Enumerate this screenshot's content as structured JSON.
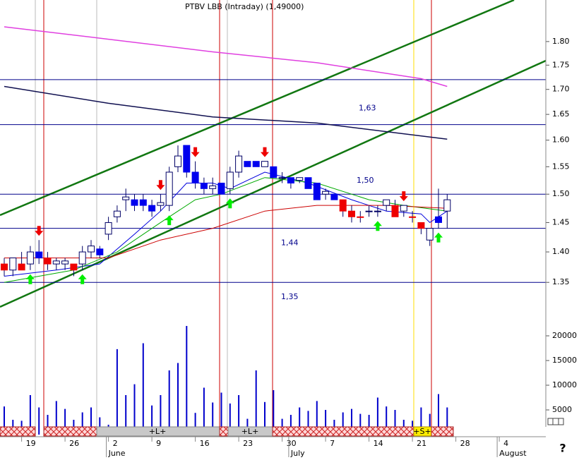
{
  "chart_data": {
    "type": "candlestick",
    "title": "PTBV LBB (Intraday) (1,49000)",
    "log": true,
    "categories": [
      null,
      null,
      "19",
      null,
      null,
      null,
      null,
      "26",
      null,
      null,
      null,
      null,
      "2",
      null,
      null,
      null,
      null,
      "9",
      null,
      null,
      null,
      null,
      "16",
      null,
      null,
      null,
      null,
      "23",
      null,
      null,
      null,
      null,
      "30",
      null,
      null,
      null,
      null,
      "7",
      null,
      null,
      null,
      null,
      "14",
      null,
      null,
      null,
      null,
      "21",
      null,
      null,
      null,
      null,
      "28",
      null,
      null,
      null,
      null,
      "4",
      null
    ],
    "months": [
      {
        "category": 12,
        "label": "June"
      },
      {
        "category": 33,
        "label": "July"
      },
      {
        "category": 57,
        "label": "August"
      }
    ],
    "open": [
      1.38,
      1.37,
      1.38,
      1.38,
      1.4,
      1.39,
      1.38,
      1.38,
      1.38,
      1.38,
      1.4,
      1.405,
      1.43,
      1.46,
      1.49,
      1.49,
      1.49,
      1.48,
      1.48,
      1.48,
      1.55,
      1.59,
      1.54,
      1.52,
      1.51,
      1.52,
      1.51,
      1.54,
      1.56,
      1.56,
      1.55,
      1.55,
      1.53,
      1.53,
      1.53,
      1.53,
      1.52,
      1.5,
      1.5,
      1.49,
      1.47,
      1.46,
      1.47,
      1.47,
      1.48,
      1.48,
      1.48,
      1.46,
      1.45,
      1.44,
      1.46,
      1.47,
      null,
      null,
      null,
      null,
      null,
      null,
      null
    ],
    "high": [
      1.39,
      1.39,
      1.4,
      1.41,
      1.42,
      1.4,
      1.39,
      1.39,
      1.38,
      1.41,
      1.42,
      1.41,
      1.46,
      1.48,
      1.51,
      1.5,
      1.5,
      1.49,
      1.5,
      1.55,
      1.59,
      1.59,
      1.56,
      1.53,
      1.53,
      1.52,
      1.55,
      1.58,
      1.56,
      1.56,
      1.56,
      1.55,
      1.54,
      1.53,
      1.53,
      1.53,
      1.52,
      1.51,
      1.5,
      1.49,
      1.48,
      1.47,
      1.48,
      1.48,
      1.49,
      1.49,
      1.48,
      1.47,
      1.45,
      1.44,
      1.51,
      1.5,
      null,
      null,
      null,
      null,
      null,
      null,
      null
    ],
    "low": [
      1.36,
      1.36,
      1.37,
      1.37,
      1.38,
      1.37,
      1.37,
      1.37,
      1.36,
      1.37,
      1.39,
      1.39,
      1.42,
      1.45,
      1.47,
      1.47,
      1.47,
      1.46,
      1.47,
      1.47,
      1.54,
      1.53,
      1.51,
      1.5,
      1.5,
      1.5,
      1.5,
      1.53,
      1.55,
      1.55,
      1.55,
      1.53,
      1.52,
      1.51,
      1.52,
      1.51,
      1.49,
      1.49,
      1.49,
      1.46,
      1.45,
      1.45,
      1.46,
      1.46,
      1.47,
      1.46,
      1.46,
      1.45,
      1.43,
      1.41,
      1.44,
      1.44,
      null,
      null,
      null,
      null,
      null,
      null,
      null
    ],
    "close": [
      1.37,
      1.39,
      1.37,
      1.4,
      1.39,
      1.38,
      1.385,
      1.385,
      1.37,
      1.4,
      1.41,
      1.395,
      1.45,
      1.47,
      1.495,
      1.48,
      1.48,
      1.47,
      1.485,
      1.54,
      1.57,
      1.54,
      1.52,
      1.51,
      1.515,
      1.5,
      1.54,
      1.57,
      1.55,
      1.55,
      1.56,
      1.53,
      1.53,
      1.52,
      1.525,
      1.51,
      1.49,
      1.505,
      1.49,
      1.47,
      1.46,
      1.46,
      1.47,
      1.47,
      1.49,
      1.46,
      1.47,
      1.46,
      1.44,
      1.42,
      1.45,
      1.49,
      null,
      null,
      null,
      null,
      null,
      null,
      null
    ],
    "fills": [
      "#ee0000",
      "#ffffff",
      "#ee0000",
      "#ffffff",
      "#0000ee",
      "#ee0000",
      "#ffffff",
      "#ffffff",
      "#ee0000",
      "#ffffff",
      "#ffffff",
      "#0000ee",
      "#ffffff",
      "#ffffff",
      "#ffffff",
      "#0000ee",
      "#0000ee",
      "#0000ee",
      "#ffffff",
      "#ffffff",
      "#ffffff",
      "#0000ee",
      "#0000ee",
      "#0000ee",
      "#ffffff",
      "#0000ee",
      "#ffffff",
      "#ffffff",
      "#0000ee",
      "#0000ee",
      "#ffffff",
      "#0000ee",
      "#ffffff",
      "#0000ee",
      "#ffffff",
      "#0000ee",
      "#0000ee",
      "#ffffff",
      "#0000ee",
      "#ee0000",
      "#ee0000",
      "#ee0000",
      "#ffffff",
      "#ffffff",
      "#ffffff",
      "#ee0000",
      "#ffffff",
      "#ee0000",
      "#ee0000",
      "#ffffff",
      "#0000ee",
      "#ffffff",
      null,
      null,
      null,
      null,
      null,
      null,
      null
    ],
    "volume": [
      5700,
      3000,
      2800,
      8000,
      5500,
      4000,
      6800,
      5200,
      3000,
      4500,
      5500,
      3500,
      2000,
      17300,
      8000,
      10200,
      18500,
      5900,
      8000,
      13000,
      14500,
      22000,
      4400,
      9500,
      6500,
      8500,
      6300,
      8000,
      3200,
      13000,
      6600,
      9000,
      3200,
      4000,
      5500,
      4800,
      6800,
      5000,
      3000,
      4500,
      5200,
      4200,
      4000,
      7500,
      5700,
      5000,
      3000,
      2800,
      5500,
      4200,
      8200,
      5500,
      null,
      null,
      null,
      null,
      null,
      null,
      null
    ],
    "volume_color": "#0000cc",
    "ylim": [
      1.3,
      1.89
    ],
    "yticks": [
      1.35,
      {
        "value": 1.4,
        "label": "1.40"
      },
      1.45,
      {
        "value": 1.5,
        "label": "1.50"
      },
      1.55,
      {
        "value": 1.6,
        "label": "1.60"
      },
      1.65,
      {
        "value": 1.7,
        "label": "1.70"
      },
      1.75,
      {
        "value": 1.8,
        "label": "1.80"
      }
    ],
    "y2lim": [
      0,
      23000
    ],
    "y2ticks": [
      5000,
      10000,
      15000,
      20000
    ],
    "hlines": {
      "color": "#00008b",
      "values": [
        1.72,
        1.63,
        1.5,
        1.44,
        1.35
      ],
      "value_labels": [
        null,
        "1,63",
        "1,50",
        "1,44",
        "1,35"
      ]
    },
    "overlays": [
      {
        "color": "#e040e0",
        "x": [
          0,
          12,
          24,
          36,
          48,
          51
        ],
        "values": [
          1.832,
          1.805,
          1.778,
          1.755,
          1.722,
          1.706
        ]
      },
      {
        "color": "#101050",
        "x": [
          0,
          12,
          24,
          36,
          51
        ],
        "values": [
          1.706,
          1.672,
          1.645,
          1.633,
          1.602
        ]
      },
      {
        "color": "#0000dd",
        "x": [
          0,
          6,
          11,
          15,
          18,
          21,
          24,
          26,
          30,
          35,
          40,
          44,
          48,
          49,
          51
        ],
        "values": [
          1.36,
          1.37,
          1.38,
          1.43,
          1.47,
          1.52,
          1.52,
          1.51,
          1.54,
          1.52,
          1.49,
          1.47,
          1.465,
          1.45,
          1.47
        ]
      },
      {
        "color": "#00aa00",
        "x": [
          0,
          8,
          13,
          18,
          22,
          25,
          30,
          36,
          42,
          46,
          51
        ],
        "values": [
          1.35,
          1.37,
          1.4,
          1.45,
          1.49,
          1.5,
          1.53,
          1.52,
          1.49,
          1.48,
          1.47
        ]
      },
      {
        "color": "#cc0000",
        "x": [
          0,
          8,
          12,
          18,
          24,
          30,
          36,
          44,
          51
        ],
        "values": [
          1.39,
          1.39,
          1.39,
          1.42,
          1.44,
          1.47,
          1.48,
          1.48,
          1.475
        ]
      }
    ],
    "signals": {
      "buy": [
        3,
        9,
        19,
        26,
        43,
        50
      ],
      "sell": [
        4,
        18,
        22,
        30,
        46
      ],
      "buy_color": "#00ee00",
      "sell_color": "#ee0000"
    },
    "band_labels": [
      "+L+",
      "+L+",
      "+S+"
    ],
    "help": "?"
  }
}
